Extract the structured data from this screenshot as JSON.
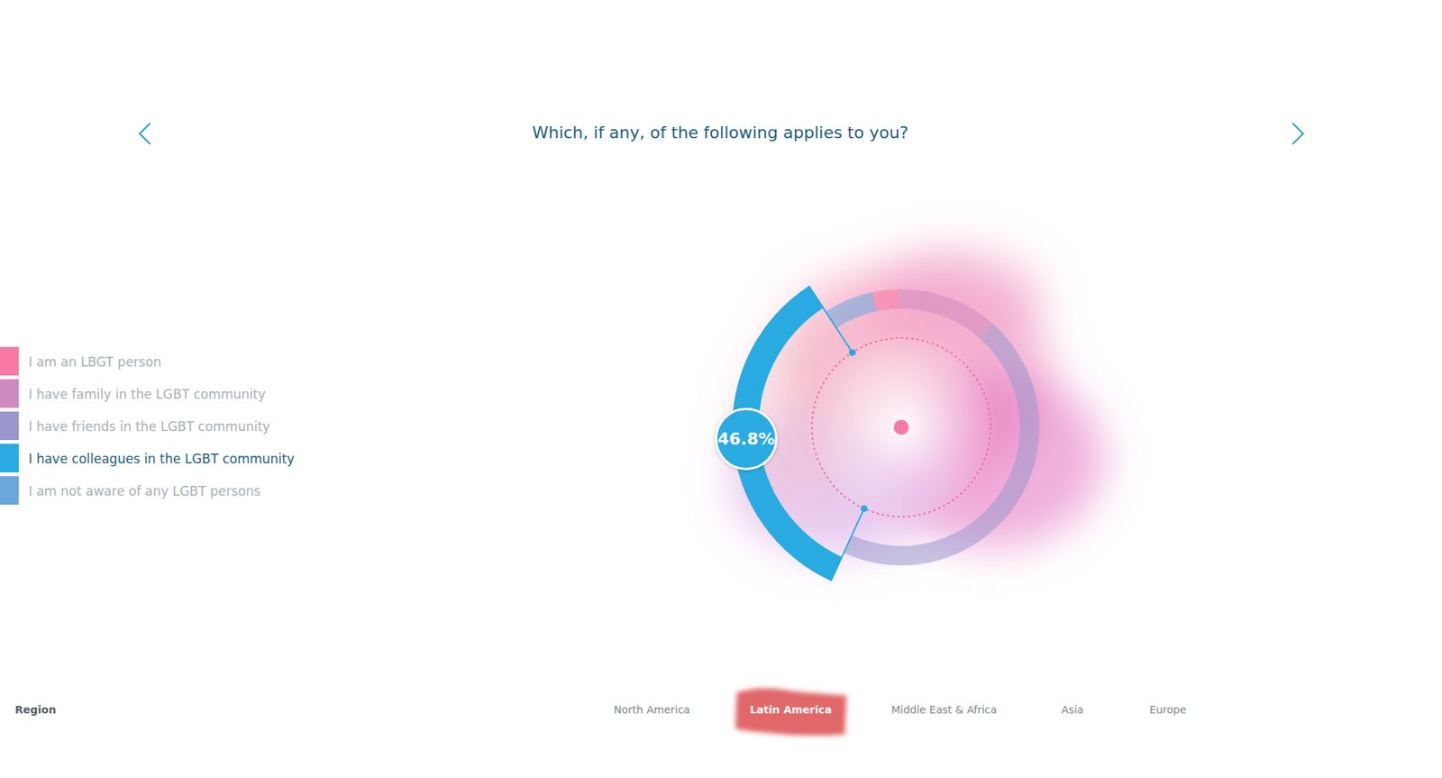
{
  "chart_data": {
    "type": "radial_bar",
    "title": "Which, if any, of the following applies to you?",
    "categories": [
      "I am an LBGT person",
      "I have family in the LGBT community",
      "I have friends in the LGBT community",
      "I have colleagues in the LGBT community",
      "I am not aware of any LGBT persons"
    ],
    "values": [
      4.2,
      16.3,
      62.4,
      46.8,
      8.1
    ],
    "value_labels": [
      null,
      null,
      null,
      "46.8%",
      null
    ],
    "data_labels": true,
    "colors": [
      "#f77aa6",
      "#cf8bbf",
      "#9b97cc",
      "#29abe2",
      "#6ba7da"
    ],
    "legend": "left",
    "filter_label": "Region",
    "filters": [
      "North America",
      "Latin America",
      "Middle East & Africa",
      "Asia",
      "Europe"
    ],
    "selected_filter": "Latin America"
  }
}
